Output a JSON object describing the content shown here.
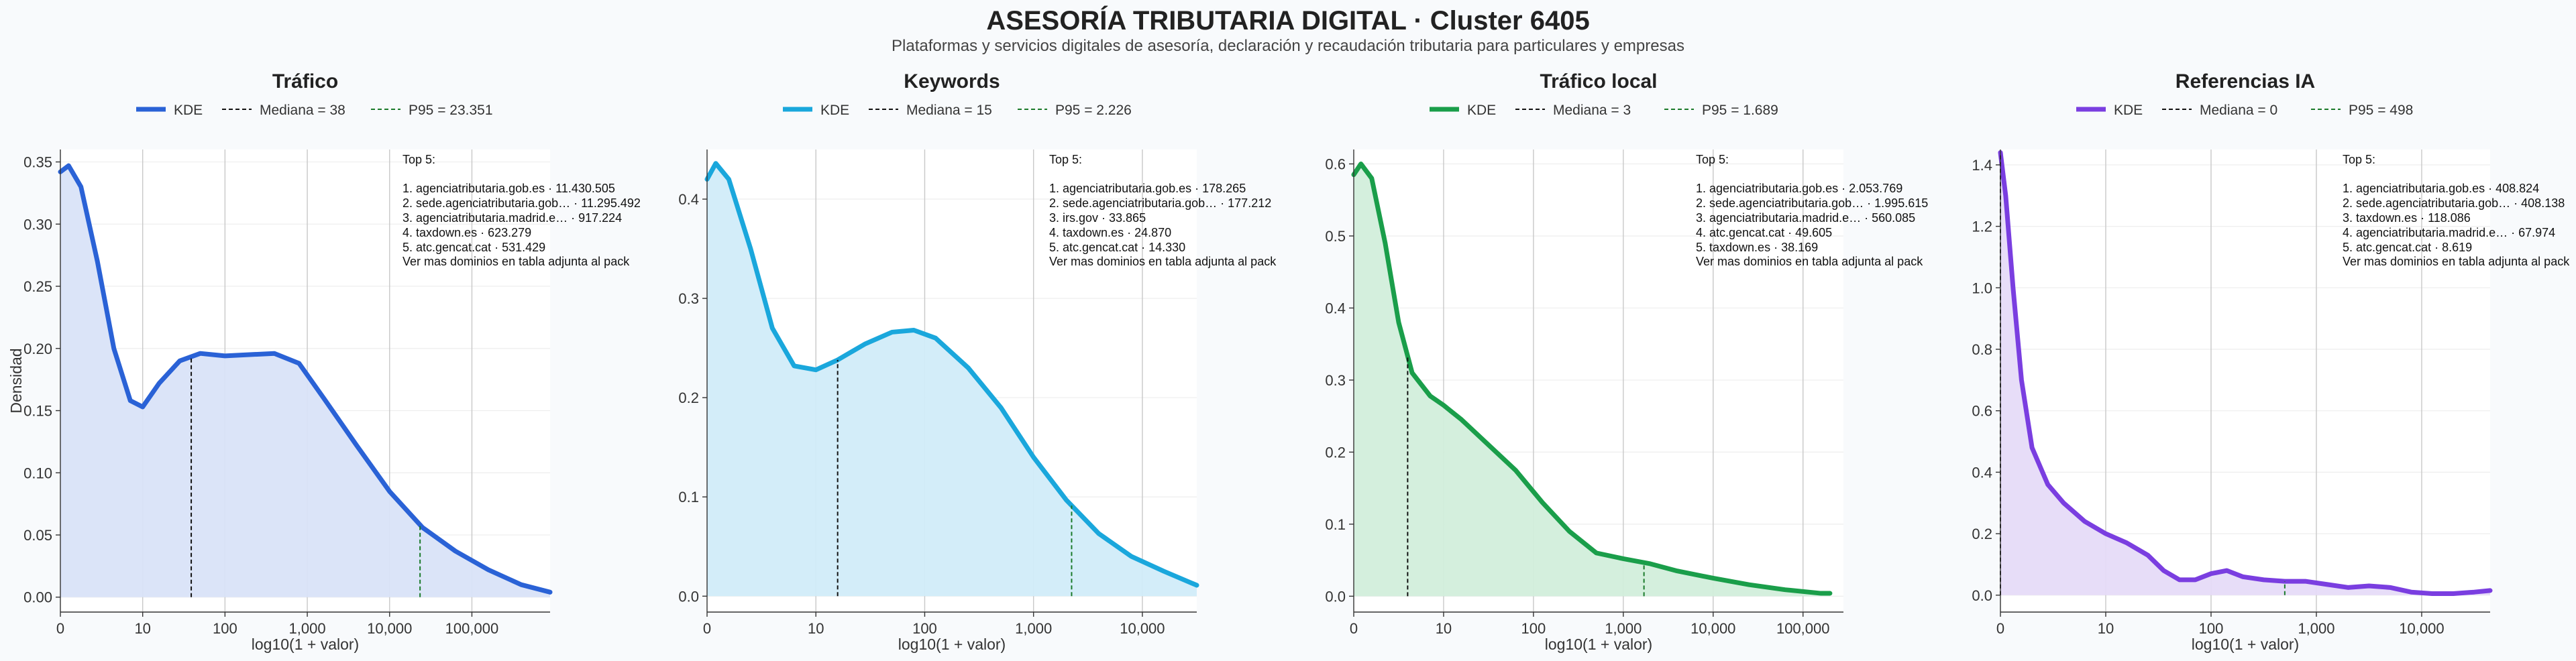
{
  "page": {
    "title": "ASESORÍA TRIBUTARIA DIGITAL · Cluster 6405",
    "subtitle": "Plataformas y servicios digitales de asesoría, declaración y recaudación tributaria para particulares y empresas"
  },
  "chart_data": [
    {
      "type": "area",
      "title": "Tráfico",
      "xlabel": "log10(1 + valor)",
      "ylabel": "Densidad",
      "color": "#2a62d6",
      "fill": "#d9e3f8",
      "xlim": [
        0,
        5.95
      ],
      "ylim": [
        -0.012,
        0.36
      ],
      "yticks": [
        0,
        0.05,
        0.1,
        0.15,
        0.2,
        0.25,
        0.3,
        0.35
      ],
      "ytick_labels": [
        "0.00",
        "0.05",
        "0.10",
        "0.15",
        "0.20",
        "0.25",
        "0.30",
        "0.35"
      ],
      "xticks": [
        0,
        1,
        2,
        3,
        4,
        5
      ],
      "xtick_labels": [
        "0",
        "10",
        "100",
        "1,000",
        "10,000",
        "100,000"
      ],
      "legend": {
        "kde": "KDE",
        "median": "Mediana = 38",
        "p95": "P95 = 23.351"
      },
      "median_x": 1.59,
      "p95_x": 4.37,
      "curve": [
        [
          0,
          0.342
        ],
        [
          0.1,
          0.347
        ],
        [
          0.25,
          0.33
        ],
        [
          0.45,
          0.27
        ],
        [
          0.65,
          0.2
        ],
        [
          0.85,
          0.158
        ],
        [
          1.0,
          0.153
        ],
        [
          1.2,
          0.172
        ],
        [
          1.45,
          0.19
        ],
        [
          1.7,
          0.196
        ],
        [
          2.0,
          0.194
        ],
        [
          2.3,
          0.195
        ],
        [
          2.6,
          0.196
        ],
        [
          2.9,
          0.188
        ],
        [
          3.2,
          0.16
        ],
        [
          3.6,
          0.122
        ],
        [
          4.0,
          0.085
        ],
        [
          4.4,
          0.056
        ],
        [
          4.8,
          0.037
        ],
        [
          5.2,
          0.022
        ],
        [
          5.6,
          0.01
        ],
        [
          5.95,
          0.004
        ]
      ],
      "annotation": {
        "header": "Top 5:",
        "lines": [
          "1. agenciatributaria.gob.es · 11.430.505",
          "2. sede.agenciatributaria.gob… · 11.295.492",
          "3. agenciatributaria.madrid.e… · 917.224",
          "4. taxdown.es · 623.279",
          "5. atc.gencat.cat · 531.429"
        ],
        "footer": "Ver mas dominios en tabla adjunta al pack"
      }
    },
    {
      "type": "area",
      "title": "Keywords",
      "xlabel": "log10(1 + valor)",
      "ylabel": "",
      "color": "#1aa7dc",
      "fill": "#d1ecf9",
      "xlim": [
        0,
        4.5
      ],
      "ylim": [
        -0.016,
        0.45
      ],
      "yticks": [
        0,
        0.1,
        0.2,
        0.3,
        0.4
      ],
      "ytick_labels": [
        "0.0",
        "0.1",
        "0.2",
        "0.3",
        "0.4"
      ],
      "xticks": [
        0,
        1,
        2,
        3,
        4
      ],
      "xtick_labels": [
        "0",
        "10",
        "100",
        "1,000",
        "10,000"
      ],
      "legend": {
        "kde": "KDE",
        "median": "Mediana = 15",
        "p95": "P95 = 2.226"
      },
      "median_x": 1.2,
      "p95_x": 3.35,
      "curve": [
        [
          0,
          0.42
        ],
        [
          0.08,
          0.436
        ],
        [
          0.2,
          0.42
        ],
        [
          0.4,
          0.35
        ],
        [
          0.6,
          0.27
        ],
        [
          0.8,
          0.232
        ],
        [
          1.0,
          0.228
        ],
        [
          1.2,
          0.238
        ],
        [
          1.45,
          0.254
        ],
        [
          1.7,
          0.266
        ],
        [
          1.9,
          0.268
        ],
        [
          2.1,
          0.26
        ],
        [
          2.4,
          0.23
        ],
        [
          2.7,
          0.19
        ],
        [
          3.0,
          0.14
        ],
        [
          3.3,
          0.097
        ],
        [
          3.6,
          0.063
        ],
        [
          3.9,
          0.04
        ],
        [
          4.2,
          0.025
        ],
        [
          4.5,
          0.011
        ]
      ],
      "annotation": {
        "header": "Top 5:",
        "lines": [
          "1. agenciatributaria.gob.es · 178.265",
          "2. sede.agenciatributaria.gob… · 177.212",
          "3. irs.gov · 33.865",
          "4. taxdown.es · 24.870",
          "5. atc.gencat.cat · 14.330"
        ],
        "footer": "Ver mas dominios en tabla adjunta al pack"
      }
    },
    {
      "type": "area",
      "title": "Tráfico local",
      "xlabel": "log10(1 + valor)",
      "ylabel": "",
      "color": "#1a9e4a",
      "fill": "#d2eedb",
      "xlim": [
        0,
        5.45
      ],
      "ylim": [
        -0.022,
        0.62
      ],
      "yticks": [
        0,
        0.1,
        0.2,
        0.3,
        0.4,
        0.5,
        0.6
      ],
      "ytick_labels": [
        "0.0",
        "0.1",
        "0.2",
        "0.3",
        "0.4",
        "0.5",
        "0.6"
      ],
      "xticks": [
        0,
        1,
        2,
        3,
        4,
        5
      ],
      "xtick_labels": [
        "0",
        "10",
        "100",
        "1,000",
        "10,000",
        "100,000"
      ],
      "legend": {
        "kde": "KDE",
        "median": "Mediana = 3",
        "p95": "P95 = 1.689"
      },
      "median_x": 0.6,
      "p95_x": 3.23,
      "curve": [
        [
          0,
          0.585
        ],
        [
          0.08,
          0.6
        ],
        [
          0.2,
          0.58
        ],
        [
          0.35,
          0.49
        ],
        [
          0.5,
          0.38
        ],
        [
          0.65,
          0.31
        ],
        [
          0.85,
          0.278
        ],
        [
          1.0,
          0.265
        ],
        [
          1.2,
          0.245
        ],
        [
          1.5,
          0.21
        ],
        [
          1.8,
          0.175
        ],
        [
          2.1,
          0.13
        ],
        [
          2.4,
          0.09
        ],
        [
          2.7,
          0.06
        ],
        [
          3.0,
          0.052
        ],
        [
          3.3,
          0.045
        ],
        [
          3.6,
          0.035
        ],
        [
          4.0,
          0.025
        ],
        [
          4.4,
          0.016
        ],
        [
          4.8,
          0.009
        ],
        [
          5.2,
          0.004
        ],
        [
          5.3,
          0.004
        ]
      ],
      "annotation": {
        "header": "Top 5:",
        "lines": [
          "1. agenciatributaria.gob.es · 2.053.769",
          "2. sede.agenciatributaria.gob… · 1.995.615",
          "3. agenciatributaria.madrid.e… · 560.085",
          "4. atc.gencat.cat · 49.605",
          "5. taxdown.es · 38.169"
        ],
        "footer": "Ver mas dominios en tabla adjunta al pack"
      }
    },
    {
      "type": "area",
      "title": "Referencias IA",
      "xlabel": "log10(1 + valor)",
      "ylabel": "",
      "color": "#7a3ee0",
      "fill": "#e6dbf8",
      "xlim": [
        0,
        4.65
      ],
      "ylim": [
        -0.055,
        1.45
      ],
      "yticks": [
        0,
        0.2,
        0.4,
        0.6,
        0.8,
        1.0,
        1.2,
        1.4
      ],
      "ytick_labels": [
        "0.0",
        "0.2",
        "0.4",
        "0.6",
        "0.8",
        "1.0",
        "1.2",
        "1.4"
      ],
      "xticks": [
        0,
        1,
        2,
        3,
        4
      ],
      "xtick_labels": [
        "0",
        "10",
        "100",
        "1,000",
        "10,000"
      ],
      "legend": {
        "kde": "KDE",
        "median": "Mediana = 0",
        "p95": "P95 = 498"
      },
      "median_x": 0,
      "p95_x": 2.7,
      "curve": [
        [
          0,
          1.44
        ],
        [
          0.05,
          1.3
        ],
        [
          0.12,
          1.0
        ],
        [
          0.2,
          0.7
        ],
        [
          0.3,
          0.48
        ],
        [
          0.45,
          0.36
        ],
        [
          0.6,
          0.3
        ],
        [
          0.8,
          0.24
        ],
        [
          1.0,
          0.2
        ],
        [
          1.2,
          0.17
        ],
        [
          1.4,
          0.13
        ],
        [
          1.55,
          0.08
        ],
        [
          1.7,
          0.05
        ],
        [
          1.85,
          0.05
        ],
        [
          2.0,
          0.07
        ],
        [
          2.15,
          0.08
        ],
        [
          2.3,
          0.06
        ],
        [
          2.5,
          0.05
        ],
        [
          2.7,
          0.045
        ],
        [
          2.9,
          0.045
        ],
        [
          3.1,
          0.035
        ],
        [
          3.3,
          0.025
        ],
        [
          3.5,
          0.03
        ],
        [
          3.7,
          0.025
        ],
        [
          3.9,
          0.01
        ],
        [
          4.1,
          0.005
        ],
        [
          4.3,
          0.005
        ],
        [
          4.5,
          0.01
        ],
        [
          4.65,
          0.015
        ]
      ],
      "annotation": {
        "header": "Top 5:",
        "lines": [
          "1. agenciatributaria.gob.es · 408.824",
          "2. sede.agenciatributaria.gob… · 408.138",
          "3. taxdown.es · 118.086",
          "4. agenciatributaria.madrid.e… · 67.974",
          "5. atc.gencat.cat · 8.619"
        ],
        "footer": "Ver mas dominios en tabla adjunta al pack"
      }
    }
  ]
}
